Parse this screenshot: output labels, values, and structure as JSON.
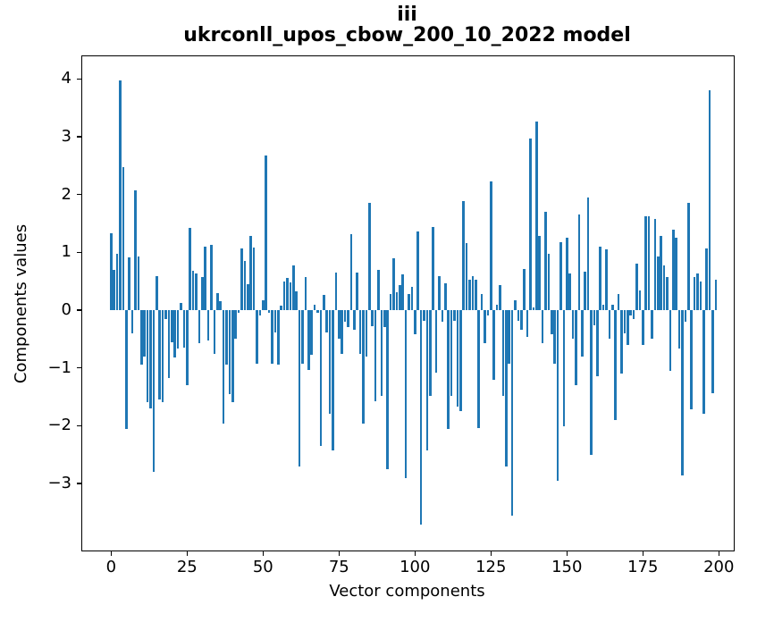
{
  "title": {
    "line1": "iii",
    "line2": "ukrconll_upos_cbow_200_10_2022 model"
  },
  "chart_data": {
    "type": "bar",
    "title": "iii — ukrconll_upos_cbow_200_10_2022 model",
    "xlabel": "Vector components",
    "ylabel": "Components values",
    "bar_color": "#1f77b4",
    "axis_color": "#000000",
    "grid": false,
    "legend": false,
    "x_ticks": [
      0,
      25,
      50,
      75,
      100,
      125,
      150,
      175,
      200
    ],
    "y_ticks": [
      4,
      3,
      2,
      1,
      0,
      -1,
      -2,
      -3
    ],
    "xlim": [
      -11,
      211
    ],
    "ylim": [
      -4.14,
      4.41
    ],
    "n_points": 200,
    "values": [
      1.33,
      0.69,
      0.97,
      3.97,
      2.47,
      -2.05,
      0.91,
      -0.4,
      2.07,
      0.93,
      -0.95,
      -0.8,
      -1.59,
      -1.7,
      -2.8,
      0.59,
      -1.55,
      -1.6,
      -0.15,
      -1.18,
      -0.56,
      -0.82,
      -0.67,
      0.12,
      -0.65,
      -1.3,
      1.43,
      0.68,
      0.63,
      -0.57,
      0.57,
      1.1,
      -0.52,
      1.13,
      -0.75,
      0.3,
      0.15,
      -1.96,
      -0.95,
      -1.45,
      -1.6,
      -0.5,
      -0.05,
      1.06,
      0.85,
      0.45,
      1.29,
      1.08,
      -0.93,
      -0.1,
      0.17,
      2.68,
      -0.05,
      -0.93,
      -0.39,
      -0.95,
      0.08,
      0.49,
      0.55,
      0.48,
      0.77,
      0.33,
      -2.71,
      -0.93,
      0.57,
      -1.03,
      -0.77,
      0.1,
      -0.05,
      -2.35,
      0.26,
      -0.39,
      -1.8,
      -2.42,
      0.65,
      -0.5,
      -0.75,
      -0.2,
      -0.29,
      1.32,
      -0.34,
      0.65,
      -0.75,
      -1.96,
      -0.8,
      1.86,
      -0.28,
      -1.57,
      0.69,
      -1.49,
      -0.3,
      -2.75,
      0.28,
      0.9,
      0.31,
      0.44,
      0.62,
      -2.9,
      0.28,
      0.4,
      -0.41,
      1.36,
      -3.71,
      -0.18,
      -2.42,
      -1.49,
      1.44,
      -1.08,
      0.59,
      -0.2,
      0.47,
      -2.06,
      -1.49,
      -0.18,
      -1.67,
      -1.75,
      1.88,
      1.16,
      0.52,
      0.58,
      0.53,
      -2.04,
      0.28,
      -0.57,
      -0.1,
      2.22,
      -1.21,
      0.1,
      0.44,
      -1.49,
      -2.7,
      -0.93,
      -3.55,
      0.17,
      -0.18,
      -0.34,
      0.71,
      -0.46,
      2.97,
      0.05,
      3.27,
      1.29,
      -0.57,
      1.7,
      0.98,
      -0.41,
      -0.93,
      -2.95,
      1.17,
      -2.01,
      1.25,
      0.64,
      -0.5,
      -1.3,
      1.66,
      -0.8,
      0.67,
      1.95,
      -2.5,
      -0.26,
      -1.15,
      1.1,
      0.1,
      1.05,
      -0.5,
      0.1,
      -1.9,
      0.28,
      -1.1,
      -0.4,
      -0.6,
      -0.1,
      -0.15,
      0.81,
      0.34,
      -0.6,
      1.63,
      1.63,
      -0.5,
      1.57,
      0.93,
      1.29,
      0.77,
      0.57,
      -1.05,
      1.39,
      1.26,
      -0.66,
      -2.86,
      -0.2,
      1.85,
      -1.72,
      0.57,
      0.64,
      0.49,
      -1.8,
      1.06,
      3.8,
      -1.44,
      0.52
    ]
  }
}
